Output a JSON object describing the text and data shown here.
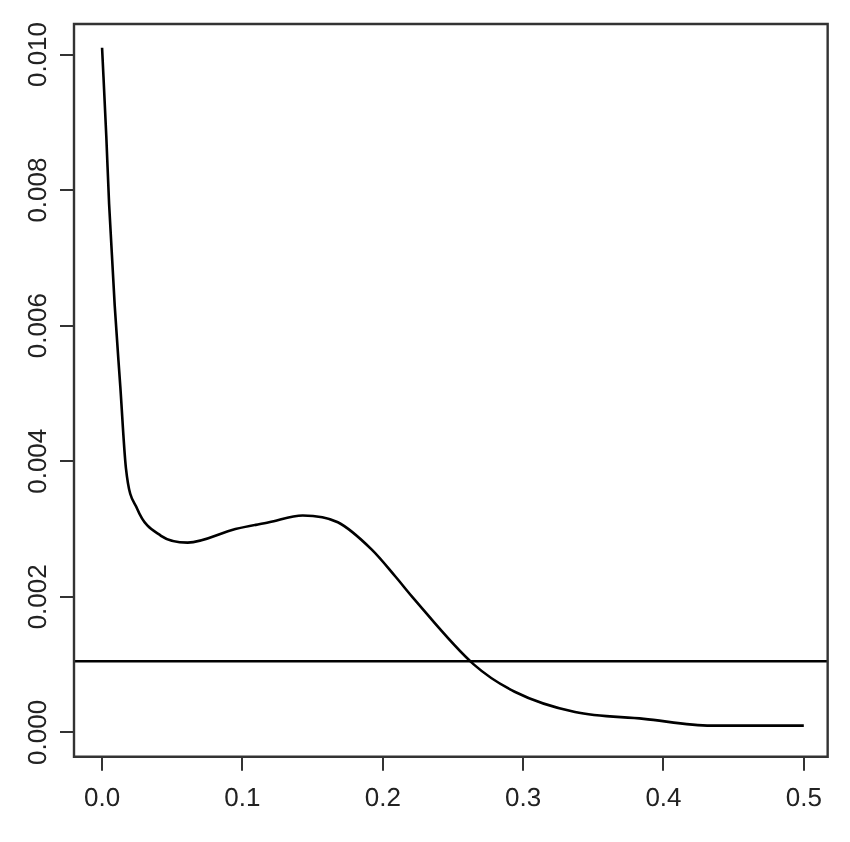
{
  "chart_data": {
    "type": "line",
    "x": [
      0.0,
      0.003,
      0.005,
      0.009,
      0.013,
      0.017,
      0.025,
      0.042,
      0.061,
      0.095,
      0.119,
      0.143,
      0.168,
      0.192,
      0.209,
      0.221,
      0.265,
      0.294,
      0.337,
      0.386,
      0.434,
      0.5
    ],
    "series": [
      {
        "color": "#000000",
        "values": [
          0.0101,
          0.0088,
          0.0078,
          0.0063,
          0.0051,
          0.0039,
          0.0033,
          0.0029,
          0.0028,
          0.003,
          0.0031,
          0.0032,
          0.0031,
          0.0027,
          0.0023,
          0.002,
          0.001,
          0.0006,
          0.0003,
          0.0002,
          0.0001,
          0.0001
        ]
      }
    ],
    "xlim": [
      -0.02,
      0.517
    ],
    "ylim": [
      -0.00036,
      0.01045
    ],
    "xticks": [
      {
        "value": 0,
        "label": "0.0"
      },
      0.1,
      0.2,
      0.3,
      0.4,
      0.5
    ],
    "yticks": [
      {
        "value": 0,
        "label": "0.000"
      },
      {
        "value": 0.002,
        "label": "0.002"
      },
      {
        "value": 0.004,
        "label": "0.004"
      },
      {
        "value": 0.006,
        "label": "0.006"
      },
      {
        "value": 0.008,
        "label": "0.008"
      },
      {
        "value": 0.01,
        "label": "0.010"
      }
    ],
    "ref_lines": [
      {
        "axis": "y",
        "value": 0.00105,
        "color": "#000000"
      }
    ],
    "grid": false,
    "legend": false,
    "marker": "none",
    "line_style": "solid"
  }
}
